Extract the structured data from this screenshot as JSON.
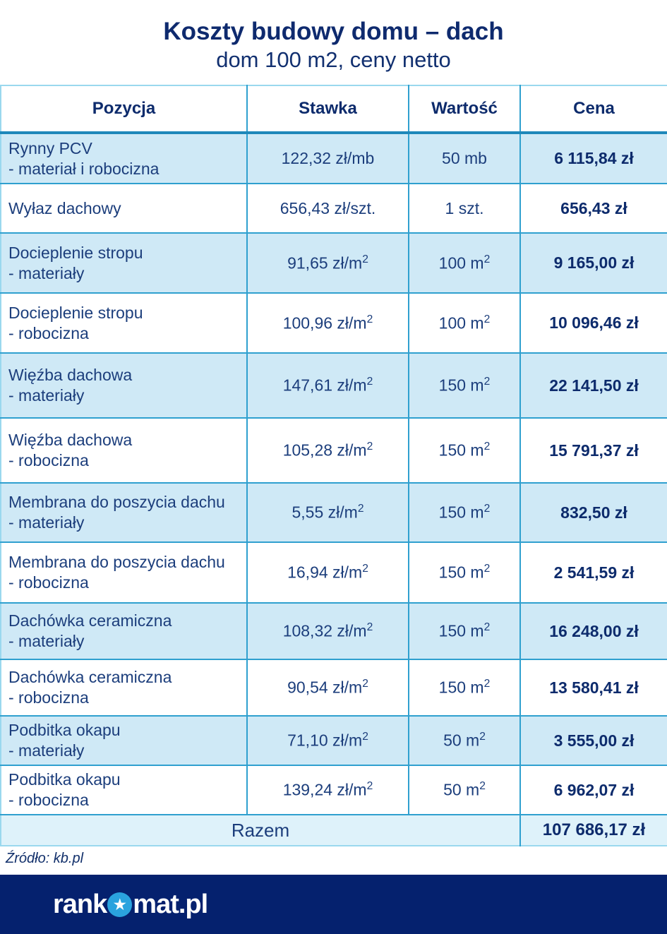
{
  "title": "Koszty budowy domu – dach",
  "subtitle": "dom 100 m2, ceny netto",
  "table": {
    "headers": {
      "pozycja": "Pozycja",
      "stawka": "Stawka",
      "wartosc": "Wartość",
      "cena": "Cena"
    },
    "rows": [
      {
        "name": "Rynny PCV",
        "sub": "- materiał i robocizna",
        "stawka": "122,32 zł/mb",
        "wartosc": "50 mb",
        "cena": "6 115,84 zł"
      },
      {
        "name": "Wyłaz dachowy",
        "sub": "",
        "stawka": "656,43 zł/szt.",
        "wartosc": "1 szt.",
        "cena": "656,43 zł"
      },
      {
        "name": "Docieplenie stropu",
        "sub": "- materiały",
        "stawka": "91,65 zł/m2",
        "wartosc": "100 m2",
        "cena": "9 165,00 zł"
      },
      {
        "name": "Docieplenie stropu",
        "sub": "- robocizna",
        "stawka": "100,96 zł/m2",
        "wartosc": "100 m2",
        "cena": "10 096,46 zł"
      },
      {
        "name": "Więźba dachowa",
        "sub": "- materiały",
        "stawka": "147,61 zł/m2",
        "wartosc": "150 m2",
        "cena": "22 141,50 zł"
      },
      {
        "name": "Więźba dachowa",
        "sub": "- robocizna",
        "stawka": "105,28 zł/m2",
        "wartosc": "150 m2",
        "cena": "15 791,37 zł"
      },
      {
        "name": "Membrana do poszycia dachu",
        "sub": "- materiały",
        "stawka": "5,55 zł/m2",
        "wartosc": "150 m2",
        "cena": "832,50 zł"
      },
      {
        "name": "Membrana do poszycia dachu",
        "sub": "- robocizna",
        "stawka": "16,94 zł/m2",
        "wartosc": "150 m2",
        "cena": "2 541,59 zł"
      },
      {
        "name": "Dachówka ceramiczna",
        "sub": "- materiały",
        "stawka": "108,32 zł/m2",
        "wartosc": "150 m2",
        "cena": "16 248,00 zł"
      },
      {
        "name": "Dachówka ceramiczna",
        "sub": "- robocizna",
        "stawka": "90,54 zł/m2",
        "wartosc": "150 m2",
        "cena": "13 580,41 zł"
      },
      {
        "name": "Podbitka okapu",
        "sub": "- materiały",
        "stawka": "71,10 zł/m2",
        "wartosc": "50 m2",
        "cena": "3 555,00 zł"
      },
      {
        "name": "Podbitka okapu",
        "sub": "- robocizna",
        "stawka": "139,24 zł/m2",
        "wartosc": "50 m2",
        "cena": "6 962,07 zł"
      }
    ],
    "total_label": "Razem",
    "total_value": "107 686,17 zł"
  },
  "source": "Źródło: kb.pl",
  "footer": {
    "logo_text_left": "rank",
    "logo_star_glyph": "★",
    "logo_text_right": "mat.pl"
  },
  "colors": {
    "navy_text": "#0e2a6e",
    "body_text": "#1c3e7c",
    "row_blue": "#cfe9f6",
    "total_row_blue": "#def2fa",
    "border_blue": "#2fa0cf",
    "header_separator": "#1e88ba",
    "footer_navy": "#05216e",
    "logo_star_blue": "#2aa3de"
  }
}
